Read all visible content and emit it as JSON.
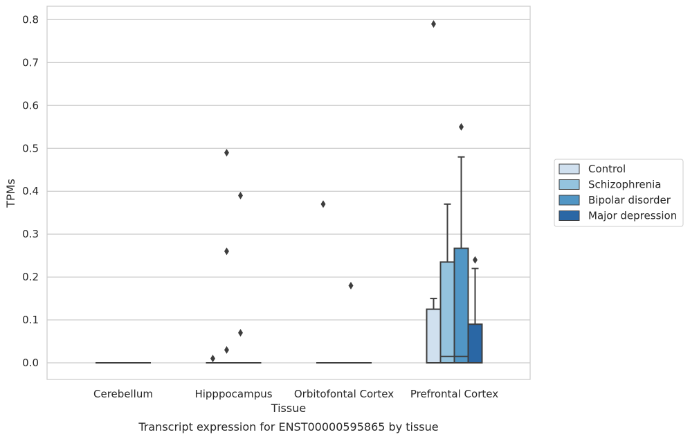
{
  "caption": "Transcript expression for ENST00000595865 by tissue",
  "colors": {
    "Control": "#d0e0ef",
    "Schizophrenia": "#94c3de",
    "Bipolar disorder": "#5196c5",
    "Major depression": "#2a67a5",
    "grid": "#cccccc",
    "box_line": "#3d3d3d"
  },
  "chart_data": {
    "type": "box",
    "title": "",
    "xlabel": "Tissue",
    "ylabel": "TPMs",
    "ylim": [
      -0.04,
      0.83
    ],
    "yticks": [
      0.0,
      0.1,
      0.2,
      0.3,
      0.4,
      0.5,
      0.6,
      0.7,
      0.8
    ],
    "ytick_labels": [
      "0.0",
      "0.1",
      "0.2",
      "0.3",
      "0.4",
      "0.5",
      "0.6",
      "0.7",
      "0.8"
    ],
    "grid": true,
    "legend_position": "right",
    "categories": [
      "Cerebellum",
      "Hipppocampus",
      "Orbitofontal Cortex",
      "Prefrontal Cortex"
    ],
    "series": [
      {
        "name": "Control",
        "boxes": [
          {
            "q1": 0,
            "median": 0,
            "q3": 0,
            "whislo": 0,
            "whishi": 0,
            "fliers": []
          },
          {
            "q1": 0,
            "median": 0,
            "q3": 0,
            "whislo": 0,
            "whishi": 0,
            "fliers": [
              0.01
            ]
          },
          {
            "q1": 0,
            "median": 0,
            "q3": 0,
            "whislo": 0,
            "whishi": 0,
            "fliers": [
              0.37
            ]
          },
          {
            "q1": 0,
            "median": 0,
            "q3": 0.125,
            "whislo": 0,
            "whishi": 0.15,
            "fliers": [
              0.79
            ]
          }
        ]
      },
      {
        "name": "Schizophrenia",
        "boxes": [
          {
            "q1": 0,
            "median": 0,
            "q3": 0,
            "whislo": 0,
            "whishi": 0,
            "fliers": []
          },
          {
            "q1": 0,
            "median": 0,
            "q3": 0,
            "whislo": 0,
            "whishi": 0,
            "fliers": [
              0.49,
              0.26,
              0.03
            ]
          },
          {
            "q1": 0,
            "median": 0,
            "q3": 0,
            "whislo": 0,
            "whishi": 0,
            "fliers": []
          },
          {
            "q1": 0,
            "median": 0.015,
            "q3": 0.235,
            "whislo": 0,
            "whishi": 0.37,
            "fliers": []
          }
        ]
      },
      {
        "name": "Bipolar disorder",
        "boxes": [
          {
            "q1": 0,
            "median": 0,
            "q3": 0,
            "whislo": 0,
            "whishi": 0,
            "fliers": []
          },
          {
            "q1": 0,
            "median": 0,
            "q3": 0,
            "whislo": 0,
            "whishi": 0,
            "fliers": [
              0.39,
              0.07
            ]
          },
          {
            "q1": 0,
            "median": 0,
            "q3": 0,
            "whislo": 0,
            "whishi": 0,
            "fliers": [
              0.18
            ]
          },
          {
            "q1": 0,
            "median": 0.015,
            "q3": 0.267,
            "whislo": 0,
            "whishi": 0.48,
            "fliers": [
              0.55
            ]
          }
        ]
      },
      {
        "name": "Major depression",
        "boxes": [
          {
            "q1": 0,
            "median": 0,
            "q3": 0,
            "whislo": 0,
            "whishi": 0,
            "fliers": []
          },
          {
            "q1": 0,
            "median": 0,
            "q3": 0,
            "whislo": 0,
            "whishi": 0,
            "fliers": []
          },
          {
            "q1": 0,
            "median": 0,
            "q3": 0,
            "whislo": 0,
            "whishi": 0,
            "fliers": []
          },
          {
            "q1": 0,
            "median": 0,
            "q3": 0.09,
            "whislo": 0,
            "whishi": 0.22,
            "fliers": [
              0.24
            ]
          }
        ]
      }
    ]
  }
}
